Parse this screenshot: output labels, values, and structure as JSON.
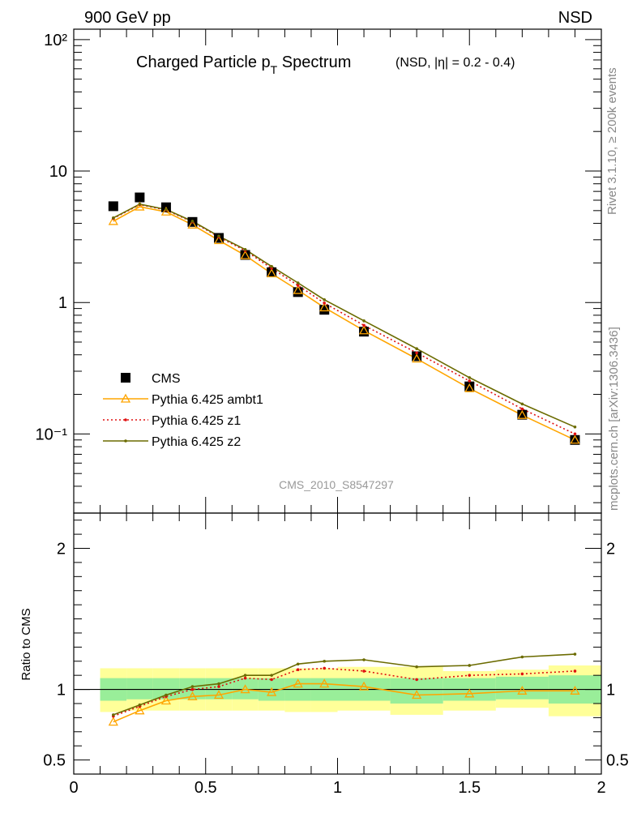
{
  "header": {
    "left": "900 GeV pp",
    "right": "NSD"
  },
  "side_labels": {
    "top": "Rivet 3.1.10, ≥ 200k events",
    "bottom": "mcplots.cern.ch [arXiv:1306.3436]"
  },
  "chart_data": [
    {
      "type": "line",
      "title_main": "Charged Particle p",
      "title_sub": "T",
      "title_rest": " Spectrum",
      "title_note": "(NSD, |η| = 0.2 - 0.4)",
      "watermark": "CMS_2010_S8547297",
      "y_scale": "log",
      "ylim": [
        0.025,
        120
      ],
      "xlim": [
        0,
        2
      ],
      "y_tick_labels": [
        "10⁻¹",
        "1",
        "10",
        "10²"
      ],
      "legend_position": "lower-left",
      "x": [
        0.15,
        0.25,
        0.35,
        0.45,
        0.55,
        0.65,
        0.75,
        0.85,
        0.95,
        1.1,
        1.3,
        1.5,
        1.7,
        1.9
      ],
      "series": [
        {
          "name": "CMS",
          "color": "#000000",
          "marker": "square",
          "values": [
            5.4,
            6.3,
            5.3,
            4.1,
            3.1,
            2.3,
            1.7,
            1.2,
            0.88,
            0.6,
            0.39,
            0.23,
            0.14,
            0.09
          ]
        },
        {
          "name": "Pythia 6.425 ambt1",
          "color": "#ffa500",
          "marker": "triangle",
          "values": [
            4.15,
            5.35,
            4.9,
            3.9,
            2.97,
            2.28,
            1.66,
            1.24,
            0.915,
            0.612,
            0.373,
            0.222,
            0.139,
            0.09
          ]
        },
        {
          "name": "Pythia 6.425 z1",
          "color": "#e01010",
          "marker": "dot-dotted",
          "values": [
            4.35,
            5.55,
            5.05,
            4.1,
            3.15,
            2.48,
            1.82,
            1.35,
            0.99,
            0.67,
            0.414,
            0.253,
            0.155,
            0.1
          ]
        },
        {
          "name": "Pythia 6.425 z2",
          "color": "#6b6b00",
          "marker": "dot",
          "values": [
            4.4,
            5.6,
            5.1,
            4.15,
            3.2,
            2.53,
            1.88,
            1.41,
            1.05,
            0.725,
            0.445,
            0.268,
            0.169,
            0.113
          ]
        }
      ]
    },
    {
      "type": "line",
      "ylabel": "Ratio to CMS",
      "ylim": [
        0.4,
        2.25
      ],
      "xlim": [
        0,
        2
      ],
      "y_tick_labels": [
        "0.5",
        "1",
        "2"
      ],
      "x_tick_labels": [
        "0",
        "0.5",
        "1",
        "1.5",
        "2"
      ],
      "reference_line": 1,
      "x": [
        0.15,
        0.25,
        0.35,
        0.45,
        0.55,
        0.65,
        0.75,
        0.85,
        0.95,
        1.1,
        1.3,
        1.5,
        1.7,
        1.9
      ],
      "bands": {
        "edges": [
          0.1,
          0.2,
          0.3,
          0.4,
          0.5,
          0.6,
          0.7,
          0.8,
          0.9,
          1.0,
          1.2,
          1.4,
          1.6,
          1.8,
          2.0
        ],
        "inner_color": "#99ee99",
        "outer_color": "#ffff99",
        "inner": [
          [
            0.92,
            1.08
          ],
          [
            0.93,
            1.08
          ],
          [
            0.93,
            1.08
          ],
          [
            0.93,
            1.08
          ],
          [
            0.93,
            1.08
          ],
          [
            0.93,
            1.08
          ],
          [
            0.92,
            1.08
          ],
          [
            0.92,
            1.08
          ],
          [
            0.92,
            1.08
          ],
          [
            0.92,
            1.08
          ],
          [
            0.9,
            1.08
          ],
          [
            0.92,
            1.08
          ],
          [
            0.93,
            1.09
          ],
          [
            0.9,
            1.1
          ]
        ],
        "outer": [
          [
            0.84,
            1.15
          ],
          [
            0.85,
            1.15
          ],
          [
            0.85,
            1.15
          ],
          [
            0.85,
            1.15
          ],
          [
            0.85,
            1.15
          ],
          [
            0.85,
            1.15
          ],
          [
            0.85,
            1.15
          ],
          [
            0.84,
            1.15
          ],
          [
            0.84,
            1.15
          ],
          [
            0.85,
            1.16
          ],
          [
            0.82,
            1.16
          ],
          [
            0.85,
            1.13
          ],
          [
            0.87,
            1.14
          ],
          [
            0.81,
            1.17
          ]
        ]
      },
      "series": [
        {
          "name": "Pythia 6.425 ambt1",
          "color": "#ffa500",
          "values": [
            0.77,
            0.85,
            0.92,
            0.95,
            0.96,
            1.0,
            0.98,
            1.04,
            1.04,
            1.02,
            0.96,
            0.97,
            0.99,
            0.99
          ]
        },
        {
          "name": "Pythia 6.425 z1",
          "color": "#e01010",
          "values": [
            0.81,
            0.88,
            0.95,
            1.0,
            1.02,
            1.08,
            1.07,
            1.14,
            1.15,
            1.13,
            1.07,
            1.1,
            1.11,
            1.13
          ]
        },
        {
          "name": "Pythia 6.425 z2",
          "color": "#6b6b00",
          "values": [
            0.82,
            0.89,
            0.96,
            1.02,
            1.04,
            1.1,
            1.1,
            1.18,
            1.2,
            1.21,
            1.16,
            1.17,
            1.23,
            1.25
          ]
        }
      ]
    }
  ]
}
